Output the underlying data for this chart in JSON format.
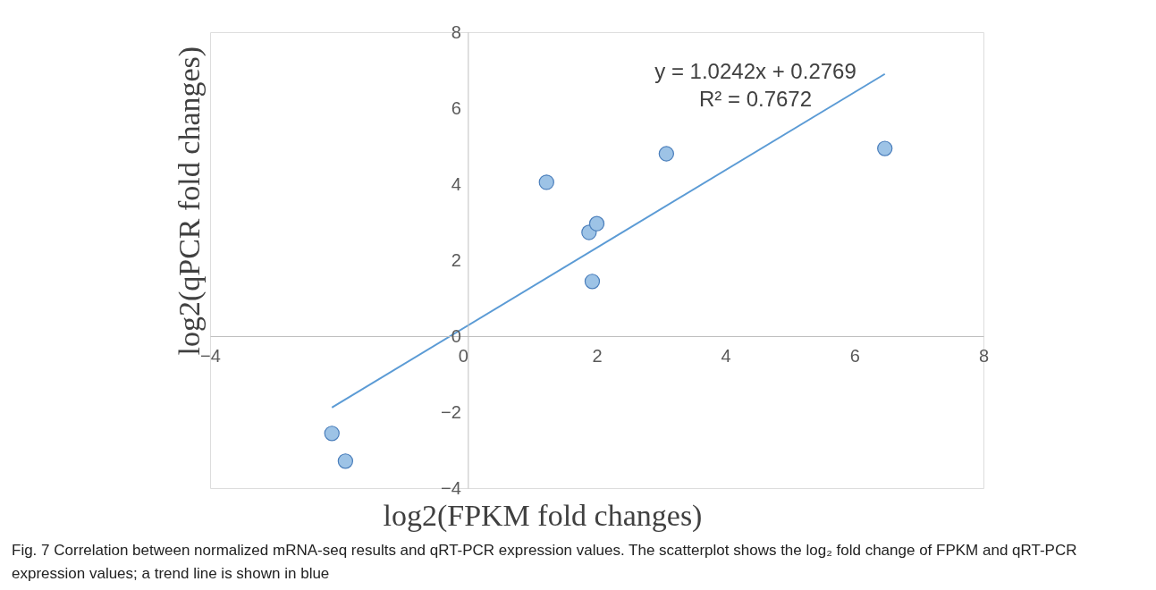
{
  "chart_data": {
    "type": "scatter",
    "xlabel": "log2(FPKM fold changes)",
    "ylabel": "log2(qPCR fold changes)",
    "xlim": [
      -4,
      8
    ],
    "ylim": [
      -4,
      8
    ],
    "xticks": [
      -4,
      0,
      2,
      4,
      6,
      8
    ],
    "yticks": [
      -4,
      -2,
      0,
      2,
      4,
      6,
      8
    ],
    "grid": false,
    "marker": "circle",
    "series": [
      {
        "color": "#9dc3e6",
        "x": [
          -2.11,
          -1.9,
          1.22,
          1.88,
          2.0,
          1.93,
          3.08,
          6.47
        ],
        "values": [
          -2.56,
          -3.29,
          4.05,
          2.73,
          2.96,
          1.44,
          4.8,
          4.94
        ]
      },
      {
        "type": "line",
        "marker": "none",
        "color": "#5b9bd5",
        "x": [
          -2.11,
          6.47
        ],
        "values": [
          -1.88,
          6.9
        ]
      }
    ],
    "annotations": [
      "y = 1.0242x + 0.2769",
      "R² = 0.7672",
      "Fig. 7 Correlation between normalized mRNA-seq results and qRT-PCR expression values. The scatterplot shows the log₂ fold change of FPKM and qRT-PCR expression values; a trend line is shown in blue"
    ]
  }
}
